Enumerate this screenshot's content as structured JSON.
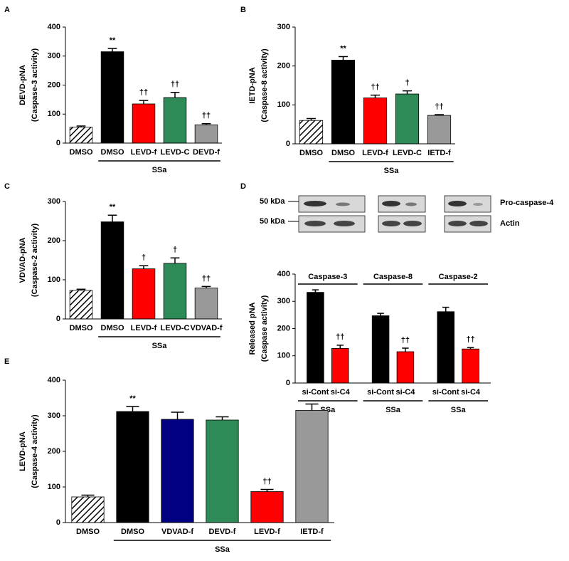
{
  "chart_data": [
    {
      "type": "bar",
      "panel": "A",
      "ylabel": "DEVD-pNA",
      "ylabel_sub": "(Caspase-3 activity)",
      "categories": [
        "DMSO",
        "DMSO",
        "LEVD-f",
        "LEVD-C",
        "DEVD-f"
      ],
      "values": [
        55,
        315,
        135,
        157,
        63
      ],
      "errors": [
        4,
        11,
        12,
        18,
        4
      ],
      "colors": [
        "hatch",
        "#000000",
        "#ff0000",
        "#2e8b57",
        "#999999"
      ],
      "annotations": [
        null,
        "**",
        "††",
        "††",
        "††"
      ],
      "group_label": "SSa",
      "ylim": [
        0,
        400
      ],
      "yticks": [
        0,
        100,
        200,
        300,
        400
      ]
    },
    {
      "type": "bar",
      "panel": "B",
      "ylabel": "IETD-pNA",
      "ylabel_sub": "(Caspase-8 activity)",
      "categories": [
        "DMSO",
        "DMSO",
        "LEVD-f",
        "LEVD-C",
        "IETD-f"
      ],
      "values": [
        60,
        215,
        118,
        128,
        73
      ],
      "errors": [
        5,
        9,
        7,
        8,
        2
      ],
      "colors": [
        "hatch",
        "#000000",
        "#ff0000",
        "#2e8b57",
        "#999999"
      ],
      "annotations": [
        null,
        "**",
        "††",
        "†",
        "††"
      ],
      "group_label": "SSa",
      "ylim": [
        0,
        300
      ],
      "yticks": [
        0,
        100,
        200,
        300
      ]
    },
    {
      "type": "bar",
      "panel": "C",
      "ylabel": "VDVAD-pNA",
      "ylabel_sub": "(Caspase-2 activity)",
      "categories": [
        "DMSO",
        "DMSO",
        "LEVD-f",
        "LEVD-C",
        "VDVAD-f"
      ],
      "values": [
        73,
        248,
        128,
        142,
        79
      ],
      "errors": [
        3,
        17,
        8,
        14,
        4
      ],
      "colors": [
        "hatch",
        "#000000",
        "#ff0000",
        "#2e8b57",
        "#999999"
      ],
      "annotations": [
        null,
        "**",
        "†",
        "†",
        "††"
      ],
      "group_label": "SSa",
      "ylim": [
        0,
        300
      ],
      "yticks": [
        0,
        100,
        200,
        300
      ]
    },
    {
      "type": "bar",
      "panel": "D",
      "ylabel": "Released pNA",
      "ylabel_sub": "(Caspase activity)",
      "categories": [
        "si-Cont",
        "si-C4",
        "si-Cont",
        "si-C4",
        "si-Cont",
        "si-C4"
      ],
      "values": [
        333,
        127,
        247,
        115,
        262,
        125
      ],
      "errors": [
        9,
        12,
        9,
        13,
        16,
        5
      ],
      "colors": [
        "#000000",
        "#ff0000",
        "#000000",
        "#ff0000",
        "#000000",
        "#ff0000"
      ],
      "annotations": [
        null,
        "††",
        null,
        "††",
        null,
        "††"
      ],
      "group_titles": [
        "Caspase-3",
        "Caspase-8",
        "Caspase-2"
      ],
      "group_labels": [
        "SSa",
        "SSa",
        "SSa"
      ],
      "blot_markers": [
        "50 kDa",
        "50 kDa"
      ],
      "blot_rows": [
        "Pro-caspase-4",
        "Actin"
      ],
      "ylim": [
        0,
        400
      ],
      "yticks": [
        0,
        100,
        200,
        300,
        400
      ]
    },
    {
      "type": "bar",
      "panel": "E",
      "ylabel": "LEVD-pNA",
      "ylabel_sub": "(Caspase-4 activity)",
      "categories": [
        "DMSO",
        "DMSO",
        "VDVAD-f",
        "DEVD-f",
        "LEVD-f",
        "IETD-f"
      ],
      "values": [
        72,
        312,
        290,
        288,
        87,
        315
      ],
      "errors": [
        5,
        14,
        20,
        9,
        6,
        18
      ],
      "colors": [
        "hatch",
        "#000000",
        "#000080",
        "#2e8b57",
        "#ff0000",
        "#999999"
      ],
      "annotations": [
        null,
        "**",
        null,
        null,
        "††",
        null
      ],
      "group_label": "SSa",
      "ylim": [
        0,
        400
      ],
      "yticks": [
        0,
        100,
        200,
        300,
        400
      ]
    }
  ]
}
